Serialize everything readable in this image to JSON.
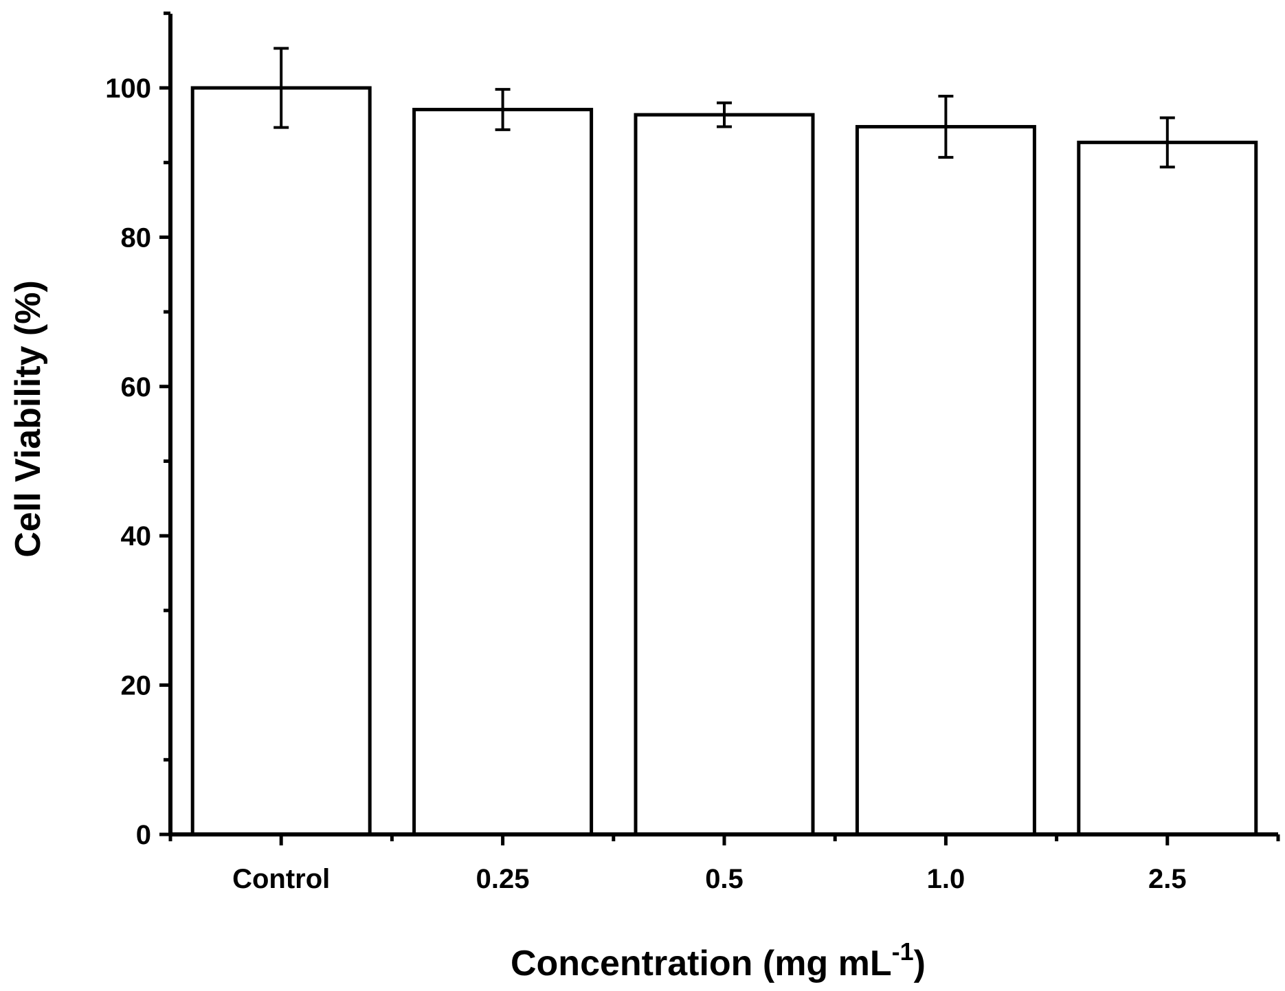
{
  "chart_data": {
    "type": "bar",
    "title": "",
    "categories": [
      "Control",
      "0.25",
      "0.5",
      "1.0",
      "2.5"
    ],
    "values": [
      100,
      97.1,
      96.4,
      94.8,
      92.7
    ],
    "errors": [
      5.3,
      2.7,
      1.6,
      4.1,
      3.3
    ],
    "xlabel": "Concentration (mg mL",
    "xlabel_superscript": "-1",
    "xlabel_suffix": ")",
    "ylabel": "Cell Viability (%)",
    "ylim": [
      0,
      110
    ],
    "yticks": [
      0,
      20,
      40,
      60,
      80,
      100
    ],
    "yminor_step": 10,
    "grid": false,
    "bar_fill": "#ffffff",
    "stroke_color": "#000000"
  }
}
